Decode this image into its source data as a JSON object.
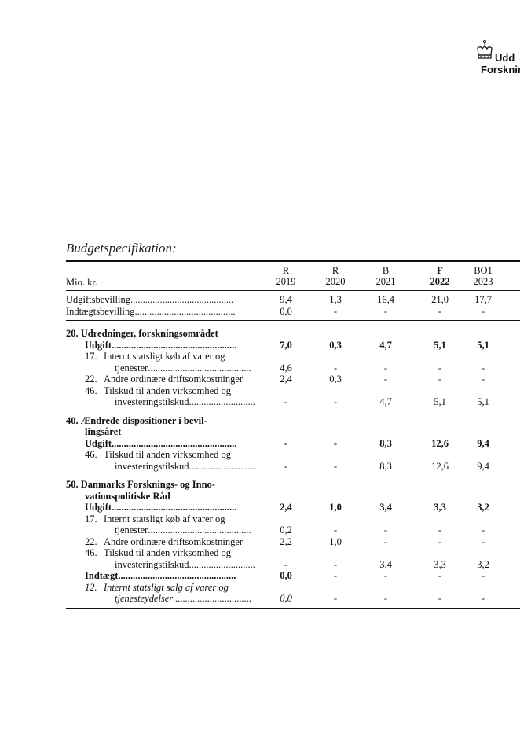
{
  "logo": {
    "line1": "Udd",
    "line2": "Forsknin"
  },
  "section_title": "Budgetspecifikation:",
  "table": {
    "unit_label": "Mio. kr.",
    "columns": [
      {
        "top": "R",
        "bottom": "2019",
        "bold": false
      },
      {
        "top": "R",
        "bottom": "2020",
        "bold": false
      },
      {
        "top": "B",
        "bottom": "2021",
        "bold": false
      },
      {
        "top": "F",
        "bottom": "2022",
        "bold": true
      },
      {
        "top": "BO1",
        "bottom": "2023",
        "bold": false
      }
    ],
    "summary": [
      {
        "label": "Udgiftsbevilling",
        "dots": "..........................................",
        "values": [
          "9,4",
          "1,3",
          "16,4",
          "21,0",
          "17,7"
        ]
      },
      {
        "label": "Indtægtsbevilling",
        "dots": ".........................................",
        "values": [
          "0,0",
          "-",
          "-",
          "-",
          "-"
        ]
      }
    ],
    "sections": [
      {
        "title_lines": [
          "20.  Udredninger, forskningsområdet"
        ],
        "rows": [
          {
            "kind": "total",
            "label": "Udgift",
            "dots": "...................................................",
            "values": [
              "7,0",
              "0,3",
              "4,7",
              "5,1",
              "5,1"
            ]
          },
          {
            "kind": "item",
            "num": "17.",
            "lines": [
              "Internt statsligt køb af varer og",
              "tjenester"
            ],
            "dots": "..........................................",
            "values": [
              "4,6",
              "-",
              "-",
              "-",
              "-"
            ]
          },
          {
            "kind": "item",
            "num": "22.",
            "lines": [
              "Andre ordinære driftsomkostninger"
            ],
            "dots": "",
            "values": [
              "2,4",
              "0,3",
              "-",
              "-",
              "-"
            ]
          },
          {
            "kind": "item",
            "num": "46.",
            "lines": [
              "Tilskud til anden virksomhed og",
              "investeringstilskud"
            ],
            "dots": "...........................",
            "values": [
              "-",
              "-",
              "4,7",
              "5,1",
              "5,1"
            ]
          }
        ]
      },
      {
        "title_lines": [
          "40.  Ændrede dispositioner i bevil-",
          "lingsåret"
        ],
        "rows": [
          {
            "kind": "total",
            "label": "Udgift",
            "dots": "...................................................",
            "values": [
              "-",
              "-",
              "8,3",
              "12,6",
              "9,4"
            ]
          },
          {
            "kind": "item",
            "num": "46.",
            "lines": [
              "Tilskud til anden virksomhed og",
              "investeringstilskud"
            ],
            "dots": "...........................",
            "values": [
              "-",
              "-",
              "8,3",
              "12,6",
              "9,4"
            ]
          }
        ]
      },
      {
        "title_lines": [
          "50.  Danmarks Forsknings- og Inno-",
          "vationspolitiske Råd"
        ],
        "rows": [
          {
            "kind": "total",
            "label": "Udgift",
            "dots": "...................................................",
            "values": [
              "2,4",
              "1,0",
              "3,4",
              "3,3",
              "3,2"
            ]
          },
          {
            "kind": "item",
            "num": "17.",
            "lines": [
              "Internt statsligt køb af varer og",
              "tjenester"
            ],
            "dots": "..........................................",
            "values": [
              "0,2",
              "-",
              "-",
              "-",
              "-"
            ]
          },
          {
            "kind": "item",
            "num": "22.",
            "lines": [
              "Andre ordinære driftsomkostninger"
            ],
            "dots": "",
            "values": [
              "2,2",
              "1,0",
              "-",
              "-",
              "-"
            ]
          },
          {
            "kind": "item",
            "num": "46.",
            "lines": [
              "Tilskud til anden virksomhed og",
              "investeringstilskud"
            ],
            "dots": "...........................",
            "values": [
              "-",
              "-",
              "3,4",
              "3,3",
              "3,2"
            ]
          },
          {
            "kind": "total",
            "label": "Indtægt",
            "dots": "................................................",
            "values": [
              "0,0",
              "-",
              "-",
              "-",
              "-"
            ]
          },
          {
            "kind": "italic-item",
            "num": "12.",
            "lines": [
              "Internt statsligt salg af varer og",
              "tjenesteydelser"
            ],
            "dots": "................................",
            "values": [
              "0,0",
              "-",
              "-",
              "-",
              "-"
            ]
          }
        ]
      }
    ]
  }
}
